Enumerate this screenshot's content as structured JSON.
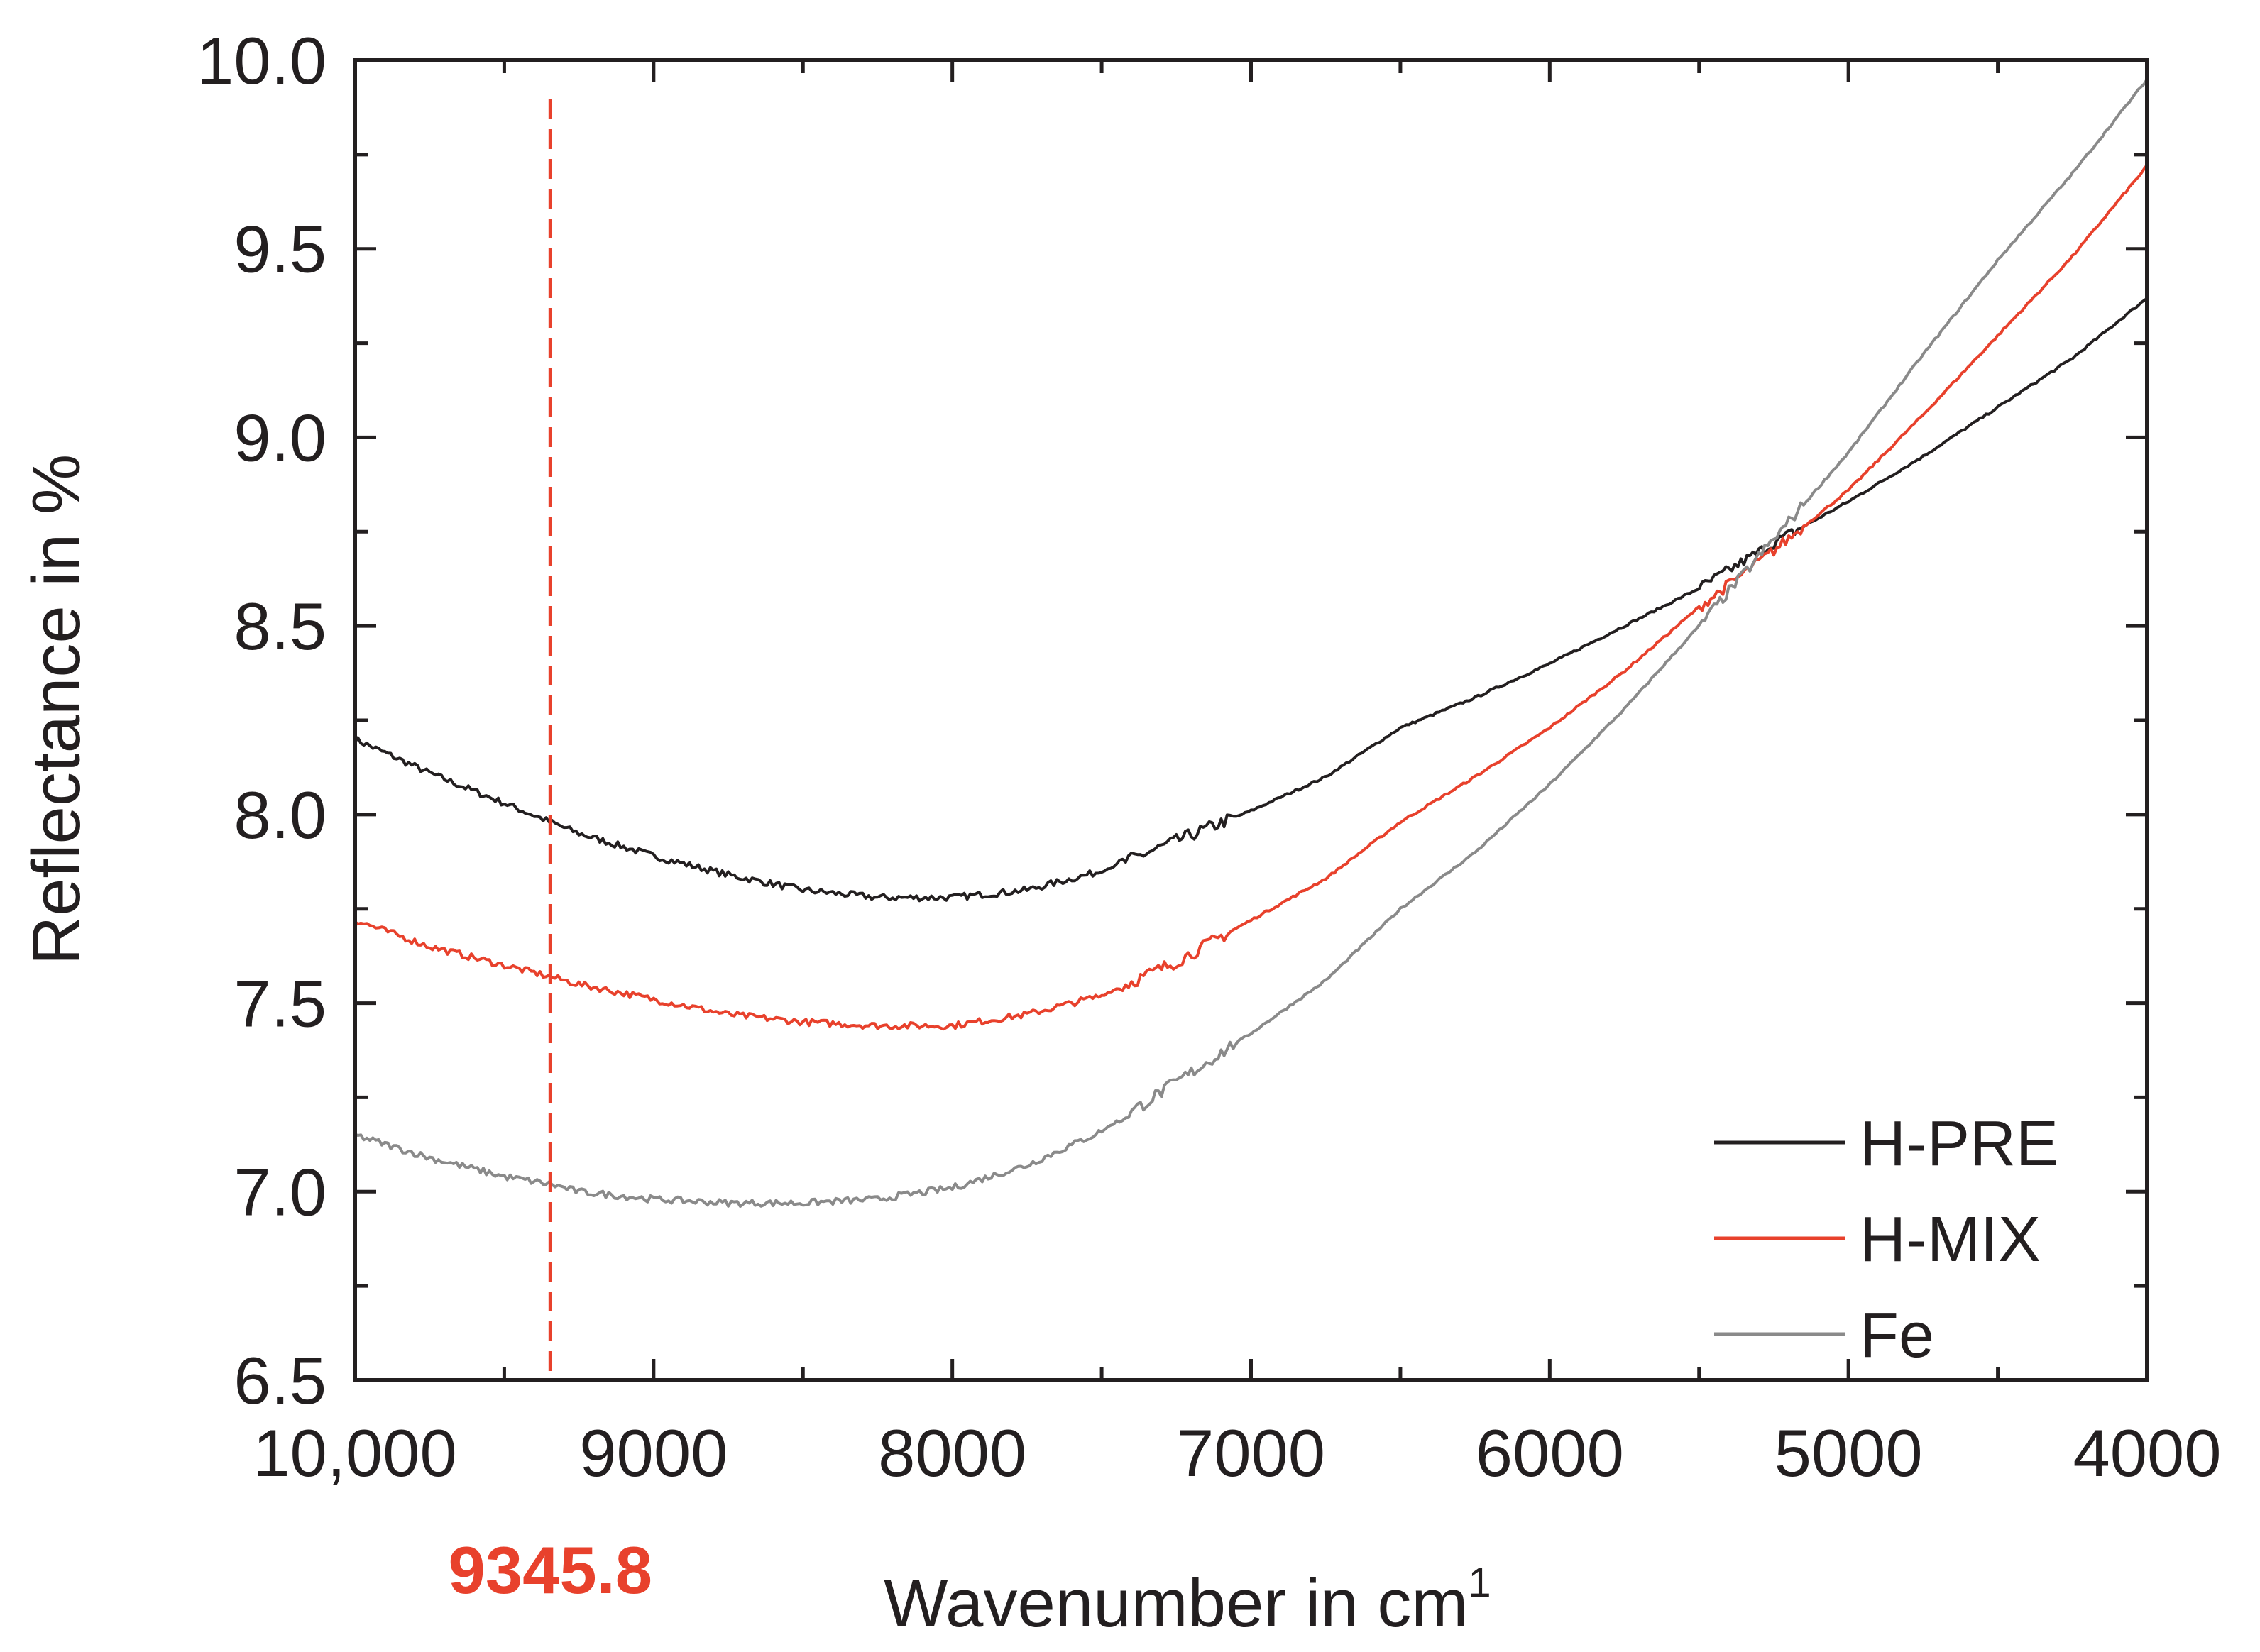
{
  "chart_data": {
    "type": "line",
    "title": "",
    "xlabel": "Wavenumber in cm",
    "xlabel_superscript": "1",
    "ylabel": "Reflectance in %",
    "xlim": [
      10000,
      4000
    ],
    "ylim": [
      6.5,
      10.0
    ],
    "x_reversed": true,
    "grid": false,
    "legend_position": "bottom-right",
    "x_ticks": [
      10000,
      9000,
      8000,
      7000,
      6000,
      5000,
      4000
    ],
    "x_tick_labels": [
      "10,000",
      "9000",
      "8000",
      "7000",
      "6000",
      "5000",
      "4000"
    ],
    "y_ticks": [
      6.5,
      7.0,
      7.5,
      8.0,
      8.5,
      9.0,
      9.5,
      10.0
    ],
    "y_tick_labels": [
      "6.5",
      "7.0",
      "7.5",
      "8.0",
      "8.5",
      "9.0",
      "9.5",
      "10.0"
    ],
    "annotation": {
      "x": 9345.8,
      "label": "9345.8",
      "color": "#e8412c",
      "style": "dashed vertical line"
    },
    "series": [
      {
        "name": "H-PRE",
        "color": "#231f20",
        "x": [
          10000,
          9750,
          9500,
          9345.8,
          9250,
          9000,
          8750,
          8500,
          8250,
          8000,
          7750,
          7500,
          7250,
          7000,
          6750,
          6500,
          6250,
          6000,
          5750,
          5500,
          5250,
          5000,
          4750,
          4500,
          4250,
          4000
        ],
        "y": [
          8.2,
          8.11,
          8.03,
          7.98,
          7.95,
          7.89,
          7.84,
          7.8,
          7.78,
          7.78,
          7.8,
          7.85,
          7.93,
          8.01,
          8.1,
          8.23,
          8.31,
          8.4,
          8.5,
          8.6,
          8.72,
          8.83,
          8.95,
          9.08,
          9.21,
          9.37
        ]
      },
      {
        "name": "H-MIX",
        "color": "#e8412c",
        "x": [
          10000,
          9750,
          9500,
          9345.8,
          9250,
          9000,
          8750,
          8500,
          8250,
          8000,
          7750,
          7500,
          7250,
          7000,
          6750,
          6500,
          6250,
          6000,
          5750,
          5500,
          5250,
          5000,
          4750,
          4500,
          4250,
          4000
        ],
        "y": [
          7.72,
          7.65,
          7.6,
          7.57,
          7.55,
          7.51,
          7.47,
          7.45,
          7.44,
          7.44,
          7.47,
          7.52,
          7.61,
          7.72,
          7.83,
          7.98,
          8.1,
          8.23,
          8.38,
          8.55,
          8.7,
          8.86,
          9.06,
          9.27,
          9.48,
          9.72
        ]
      },
      {
        "name": "Fe",
        "color": "#8a8a8a",
        "x": [
          10000,
          9750,
          9500,
          9345.8,
          9250,
          9000,
          8750,
          8500,
          8250,
          8000,
          7750,
          7500,
          7250,
          7000,
          6750,
          6500,
          6250,
          6000,
          5750,
          5500,
          5250,
          5000,
          4750,
          4500,
          4250,
          4000
        ],
        "y": [
          7.15,
          7.09,
          7.04,
          7.02,
          7.0,
          6.98,
          6.97,
          6.97,
          6.98,
          7.01,
          7.07,
          7.16,
          7.29,
          7.42,
          7.56,
          7.75,
          7.9,
          8.08,
          8.28,
          8.5,
          8.73,
          8.96,
          9.22,
          9.47,
          9.7,
          9.95
        ]
      }
    ]
  }
}
